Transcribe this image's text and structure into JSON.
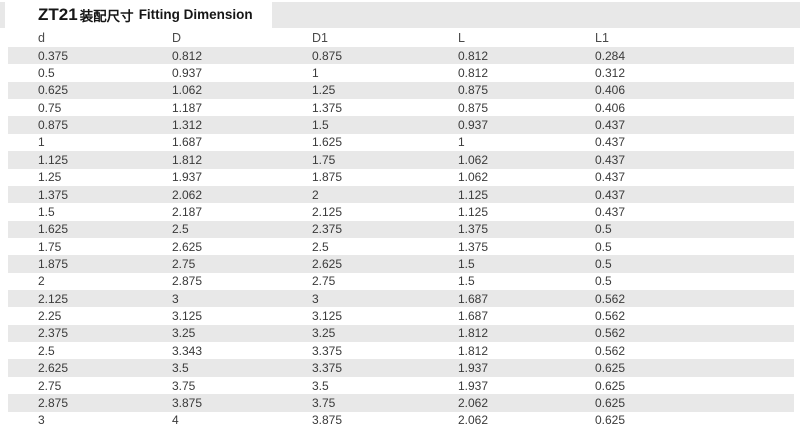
{
  "title": {
    "model": "ZT21",
    "zh": "装配尺寸",
    "en": "Fitting Dimension"
  },
  "colors": {
    "zebra_row": "#e8e8e8",
    "title_band": "#e8e8e8",
    "text": "#3a3a3a"
  },
  "table": {
    "columns": [
      "d",
      "D",
      "D1",
      "L",
      "L1"
    ],
    "rows": [
      [
        "0.375",
        "0.812",
        "0.875",
        "0.812",
        "0.284"
      ],
      [
        "0.5",
        "0.937",
        "1",
        "0.812",
        "0.312"
      ],
      [
        "0.625",
        "1.062",
        "1.25",
        "0.875",
        "0.406"
      ],
      [
        "0.75",
        "1.187",
        "1.375",
        "0.875",
        "0.406"
      ],
      [
        "0.875",
        "1.312",
        "1.5",
        "0.937",
        "0.437"
      ],
      [
        "1",
        "1.687",
        "1.625",
        "1",
        "0.437"
      ],
      [
        "1.125",
        "1.812",
        "1.75",
        "1.062",
        "0.437"
      ],
      [
        "1.25",
        "1.937",
        "1.875",
        "1.062",
        "0.437"
      ],
      [
        "1.375",
        "2.062",
        "2",
        "1.125",
        "0.437"
      ],
      [
        "1.5",
        "2.187",
        "2.125",
        "1.125",
        "0.437"
      ],
      [
        "1.625",
        "2.5",
        "2.375",
        "1.375",
        "0.5"
      ],
      [
        "1.75",
        "2.625",
        "2.5",
        "1.375",
        "0.5"
      ],
      [
        "1.875",
        "2.75",
        "2.625",
        "1.5",
        "0.5"
      ],
      [
        "2",
        "2.875",
        "2.75",
        "1.5",
        "0.5"
      ],
      [
        "2.125",
        "3",
        "3",
        "1.687",
        "0.562"
      ],
      [
        "2.25",
        "3.125",
        "3.125",
        "1.687",
        "0.562"
      ],
      [
        "2.375",
        "3.25",
        "3.25",
        "1.812",
        "0.562"
      ],
      [
        "2.5",
        "3.343",
        "3.375",
        "1.812",
        "0.562"
      ],
      [
        "2.625",
        "3.5",
        "3.375",
        "1.937",
        "0.625"
      ],
      [
        "2.75",
        "3.75",
        "3.5",
        "1.937",
        "0.625"
      ],
      [
        "2.875",
        "3.875",
        "3.75",
        "2.062",
        "0.625"
      ],
      [
        "3",
        "4",
        "3.875",
        "2.062",
        "0.625"
      ]
    ]
  }
}
